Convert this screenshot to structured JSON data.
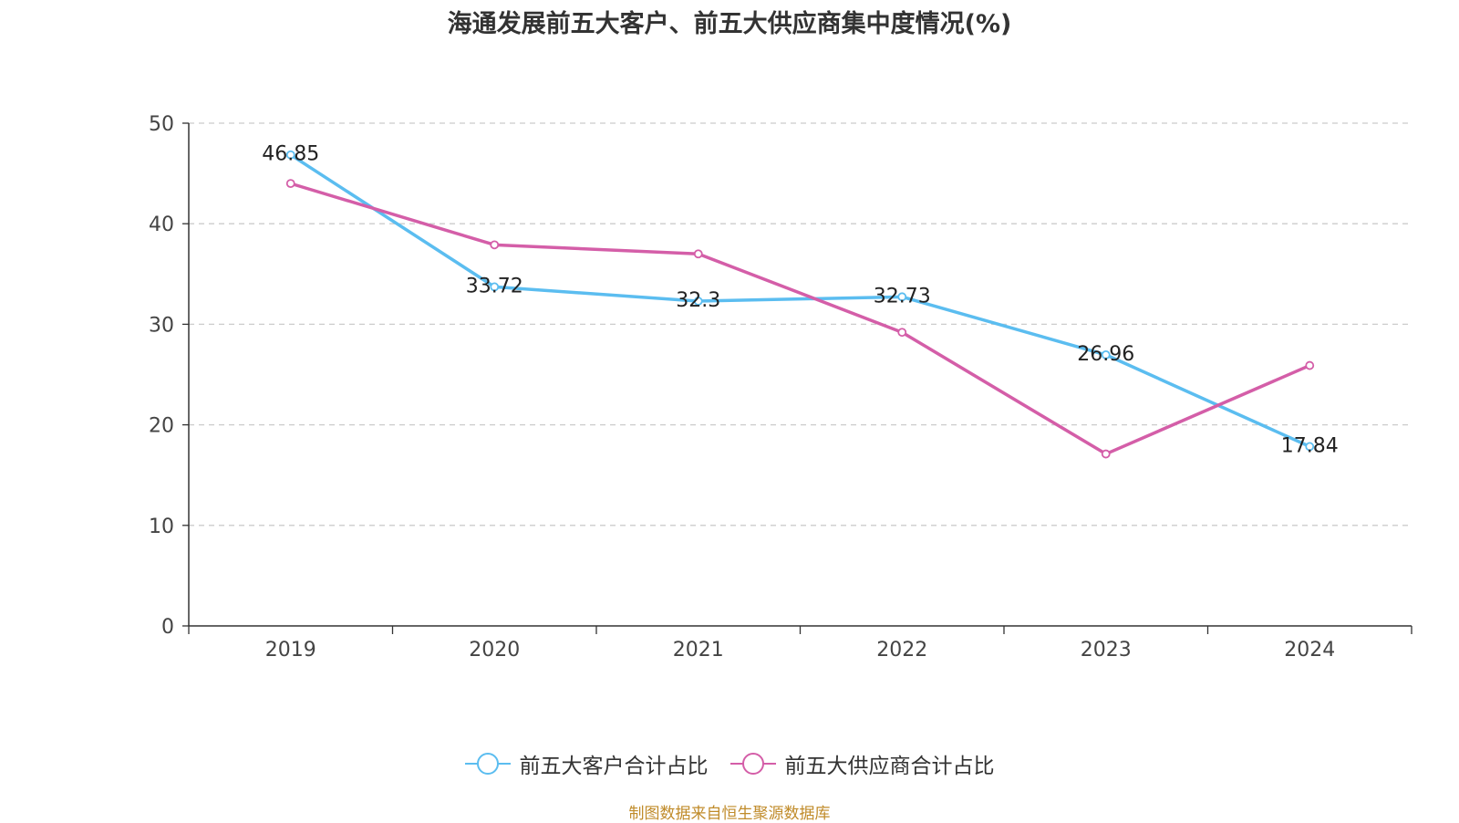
{
  "chart_data": {
    "type": "line",
    "title": "海通发展前五大客户、前五大供应商集中度情况(%)",
    "categories": [
      "2019",
      "2020",
      "2021",
      "2022",
      "2023",
      "2024"
    ],
    "y_ticks": [
      "0",
      "10",
      "20",
      "30",
      "40",
      "50"
    ],
    "ylim": [
      0,
      50
    ],
    "grid": true,
    "legend_position": "bottom",
    "series": [
      {
        "name": "前五大客户合计占比",
        "color": "#5bbdf0",
        "values": [
          46.85,
          33.72,
          32.3,
          32.73,
          26.96,
          17.84
        ],
        "labels": [
          "46.85",
          "33.72",
          "32.3",
          "32.73",
          "26.96",
          "17.84"
        ]
      },
      {
        "name": "前五大供应商合计占比",
        "color": "#d45ea8",
        "values": [
          44.0,
          37.9,
          37.0,
          29.2,
          17.1,
          25.9
        ]
      }
    ],
    "source": "制图数据来自恒生聚源数据库"
  }
}
